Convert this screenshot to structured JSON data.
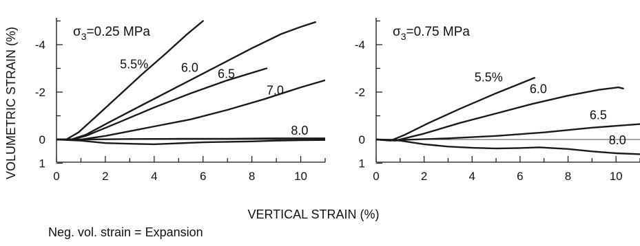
{
  "xlabel": "VERTICAL STRAIN (%)",
  "ylabel": "VOLUMETRIC STRAIN (%)",
  "footnote": "Neg. vol. strain = Expansion",
  "chart_data": [
    {
      "type": "line",
      "title_prefix": "σ",
      "title_sub": "3",
      "title_suffix": "=0.25 MPa",
      "xlim": [
        0,
        11
      ],
      "ylim": [
        1,
        -5
      ],
      "xticks": [
        0,
        2,
        4,
        6,
        8,
        10
      ],
      "yticks": [
        -4,
        -2,
        0,
        1
      ],
      "yticklabels": [
        "-4",
        "-2",
        "0",
        "1"
      ],
      "series": [
        {
          "name": "5.5%",
          "label_at": [
            2.6,
            -3.0
          ],
          "points": [
            [
              0,
              0
            ],
            [
              0.4,
              0
            ],
            [
              0.9,
              -0.3
            ],
            [
              1.6,
              -0.95
            ],
            [
              2.5,
              -1.8
            ],
            [
              3.5,
              -2.75
            ],
            [
              4.5,
              -3.65
            ],
            [
              5.3,
              -4.4
            ],
            [
              6.0,
              -5.0
            ]
          ]
        },
        {
          "name": "6.0",
          "label_at": [
            5.1,
            -2.85
          ],
          "points": [
            [
              0,
              0
            ],
            [
              0.6,
              0
            ],
            [
              1.2,
              -0.2
            ],
            [
              2.2,
              -0.75
            ],
            [
              3.5,
              -1.45
            ],
            [
              5,
              -2.25
            ],
            [
              6.5,
              -3.05
            ],
            [
              8,
              -3.85
            ],
            [
              9.2,
              -4.45
            ],
            [
              10,
              -4.75
            ],
            [
              10.6,
              -4.95
            ]
          ]
        },
        {
          "name": "6.5",
          "label_at": [
            6.6,
            -2.6
          ],
          "points": [
            [
              0,
              0
            ],
            [
              0.6,
              0
            ],
            [
              1.2,
              -0.15
            ],
            [
              2.5,
              -0.7
            ],
            [
              4,
              -1.35
            ],
            [
              5.5,
              -1.95
            ],
            [
              7,
              -2.5
            ],
            [
              8.6,
              -3.0
            ]
          ]
        },
        {
          "name": "7.0",
          "label_at": [
            8.6,
            -1.9
          ],
          "points": [
            [
              0,
              0
            ],
            [
              1,
              0
            ],
            [
              2,
              -0.15
            ],
            [
              3,
              -0.35
            ],
            [
              4,
              -0.55
            ],
            [
              5.5,
              -0.85
            ],
            [
              7,
              -1.25
            ],
            [
              8.5,
              -1.7
            ],
            [
              10,
              -2.2
            ],
            [
              11,
              -2.5
            ]
          ]
        },
        {
          "name": "8.0",
          "label_at": [
            9.6,
            -0.2
          ],
          "points": [
            [
              0,
              0
            ],
            [
              1,
              0
            ],
            [
              3,
              -0.02
            ],
            [
              5,
              -0.03
            ],
            [
              7,
              -0.03
            ],
            [
              9,
              -0.05
            ],
            [
              11,
              -0.05
            ]
          ]
        },
        {
          "name": "",
          "points": [
            [
              0,
              0
            ],
            [
              1,
              0.05
            ],
            [
              2,
              0.15
            ],
            [
              3,
              0.18
            ],
            [
              4,
              0.2
            ],
            [
              5,
              0.16
            ],
            [
              6,
              0.12
            ],
            [
              7,
              0.1
            ],
            [
              8,
              0.08
            ],
            [
              9,
              0.05
            ],
            [
              10,
              0.03
            ],
            [
              11,
              0.02
            ]
          ]
        }
      ]
    },
    {
      "type": "line",
      "title_prefix": "σ",
      "title_sub": "3",
      "title_suffix": "=0.75 MPa",
      "xlim": [
        0,
        11
      ],
      "ylim": [
        1,
        -5
      ],
      "xticks": [
        0,
        2,
        4,
        6,
        8,
        10
      ],
      "yticks": [
        -4,
        -2,
        0,
        1
      ],
      "yticklabels": [
        "-4",
        "-2",
        "0",
        "1"
      ],
      "series": [
        {
          "name": "5.5%",
          "label_at": [
            4.1,
            -2.45
          ],
          "points": [
            [
              0,
              0
            ],
            [
              0.6,
              0.05
            ],
            [
              1.2,
              -0.2
            ],
            [
              2.2,
              -0.7
            ],
            [
              3.5,
              -1.3
            ],
            [
              5,
              -1.95
            ],
            [
              6.6,
              -2.6
            ]
          ]
        },
        {
          "name": "6.0",
          "label_at": [
            6.4,
            -1.95
          ],
          "points": [
            [
              0,
              0
            ],
            [
              0.8,
              0.05
            ],
            [
              2,
              -0.25
            ],
            [
              3.5,
              -0.7
            ],
            [
              5,
              -1.1
            ],
            [
              6.5,
              -1.5
            ],
            [
              8,
              -1.85
            ],
            [
              9.3,
              -2.1
            ],
            [
              10.1,
              -2.2
            ],
            [
              10.3,
              -2.15
            ]
          ]
        },
        {
          "name": "6.5",
          "label_at": [
            8.9,
            -0.85
          ],
          "points": [
            [
              0,
              0
            ],
            [
              1,
              0.02
            ],
            [
              3,
              -0.05
            ],
            [
              5,
              -0.15
            ],
            [
              7,
              -0.3
            ],
            [
              9,
              -0.5
            ],
            [
              11,
              -0.65
            ]
          ]
        },
        {
          "name": "8.0",
          "label_at": [
            9.7,
            0.2
          ],
          "points": [
            [
              0,
              0
            ],
            [
              1,
              0.05
            ],
            [
              2,
              0.2
            ],
            [
              3,
              0.3
            ],
            [
              4,
              0.35
            ],
            [
              5,
              0.38
            ],
            [
              6,
              0.36
            ],
            [
              6.8,
              0.33
            ],
            [
              8,
              0.4
            ],
            [
              9,
              0.5
            ],
            [
              10,
              0.58
            ],
            [
              11,
              0.62
            ]
          ]
        }
      ]
    }
  ]
}
